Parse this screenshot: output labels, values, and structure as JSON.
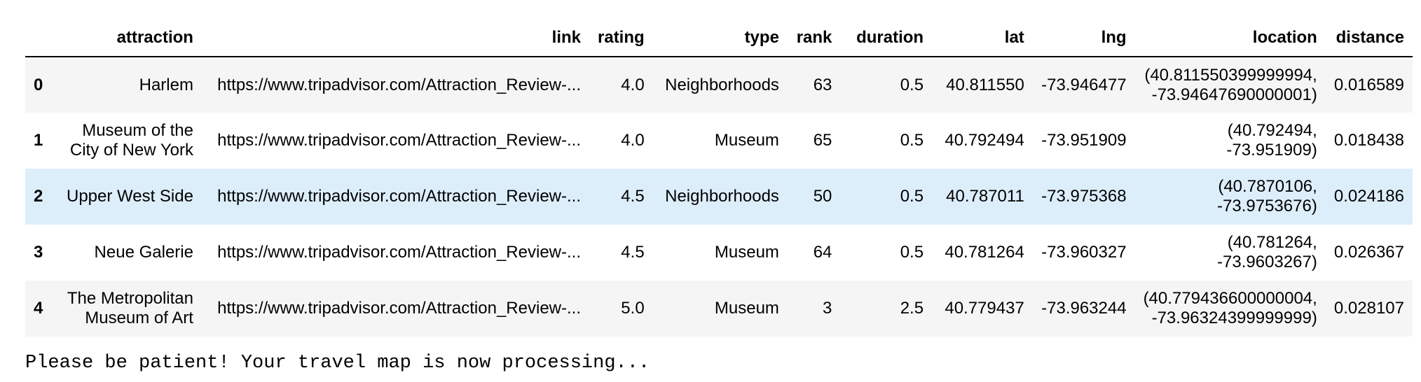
{
  "table": {
    "columns": [
      "attraction",
      "link",
      "rating",
      "type",
      "rank",
      "duration",
      "lat",
      "lng",
      "location",
      "distance"
    ],
    "rows": [
      {
        "index": "0",
        "attraction": "Harlem",
        "link": "https://www.tripadvisor.com/Attraction_Review-...",
        "rating": "4.0",
        "type": "Neighborhoods",
        "rank": "63",
        "duration": "0.5",
        "lat": "40.811550",
        "lng": "-73.946477",
        "location": "(40.811550399999994, -73.94647690000001)",
        "distance": "0.016589"
      },
      {
        "index": "1",
        "attraction": "Museum of the City of New York",
        "link": "https://www.tripadvisor.com/Attraction_Review-...",
        "rating": "4.0",
        "type": "Museum",
        "rank": "65",
        "duration": "0.5",
        "lat": "40.792494",
        "lng": "-73.951909",
        "location": "(40.792494, -73.951909)",
        "distance": "0.018438"
      },
      {
        "index": "2",
        "attraction": "Upper West Side",
        "link": "https://www.tripadvisor.com/Attraction_Review-...",
        "rating": "4.5",
        "type": "Neighborhoods",
        "rank": "50",
        "duration": "0.5",
        "lat": "40.787011",
        "lng": "-73.975368",
        "location": "(40.7870106, -73.9753676)",
        "distance": "0.024186"
      },
      {
        "index": "3",
        "attraction": "Neue Galerie",
        "link": "https://www.tripadvisor.com/Attraction_Review-...",
        "rating": "4.5",
        "type": "Museum",
        "rank": "64",
        "duration": "0.5",
        "lat": "40.781264",
        "lng": "-73.960327",
        "location": "(40.781264, -73.9603267)",
        "distance": "0.026367"
      },
      {
        "index": "4",
        "attraction": "The Metropolitan Museum of Art",
        "link": "https://www.tripadvisor.com/Attraction_Review-...",
        "rating": "5.0",
        "type": "Museum",
        "rank": "3",
        "duration": "2.5",
        "lat": "40.779437",
        "lng": "-73.963244",
        "location": "(40.779436600000004, -73.96324399999999)",
        "distance": "0.028107"
      }
    ]
  },
  "output": {
    "message": "Please be patient! Your travel map is now processing..."
  },
  "colors": {
    "row_even": "#f5f5f5",
    "row_hover": "#ddeefb"
  }
}
